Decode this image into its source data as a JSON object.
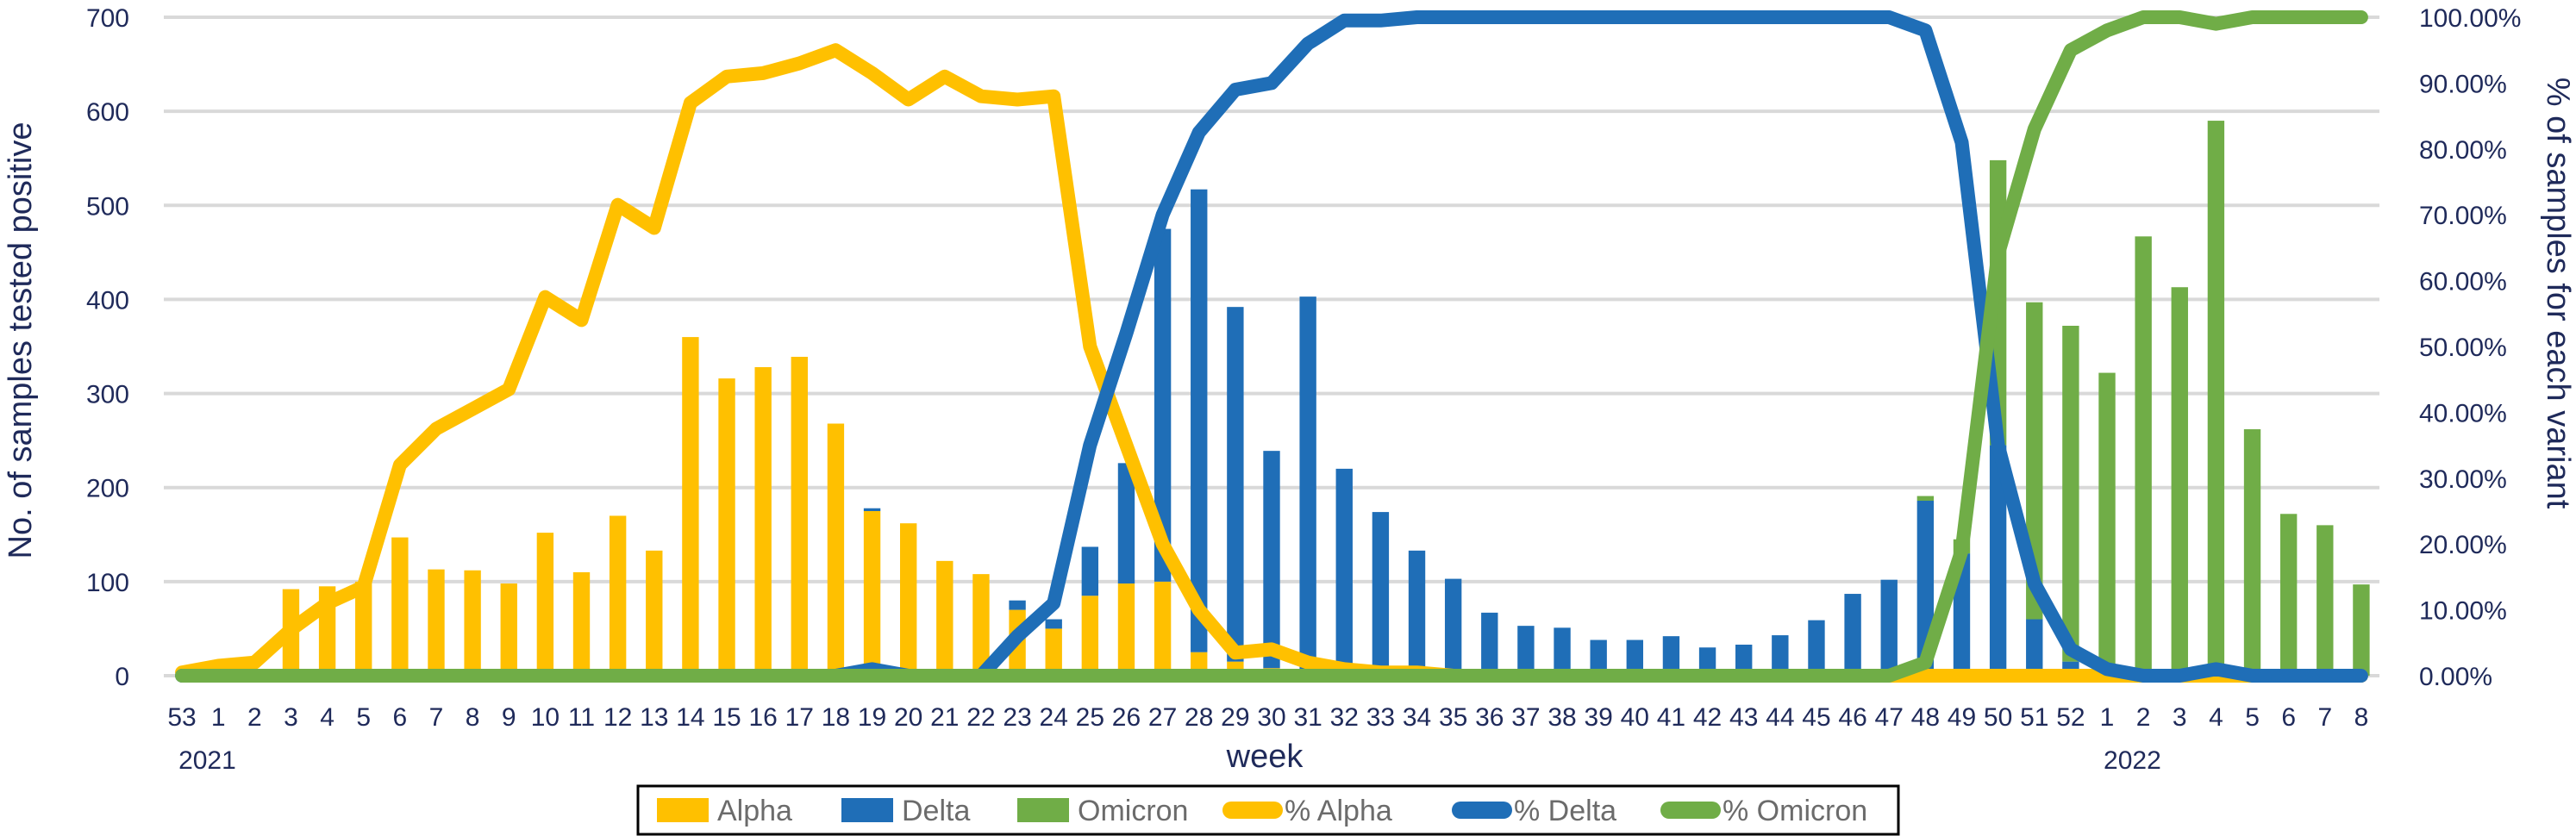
{
  "chart_data": {
    "type": "bar",
    "categories": [
      "53",
      "1",
      "2",
      "3",
      "4",
      "5",
      "6",
      "7",
      "8",
      "9",
      "10",
      "11",
      "12",
      "13",
      "14",
      "15",
      "16",
      "17",
      "18",
      "19",
      "20",
      "21",
      "22",
      "23",
      "24",
      "25",
      "26",
      "27",
      "28",
      "29",
      "30",
      "31",
      "32",
      "33",
      "34",
      "35",
      "36",
      "37",
      "38",
      "39",
      "40",
      "41",
      "42",
      "43",
      "44",
      "45",
      "46",
      "47",
      "48",
      "49",
      "50",
      "51",
      "52",
      "1",
      "2",
      "3",
      "4",
      "5",
      "6",
      "7",
      "8"
    ],
    "year_labels": [
      {
        "text": "2021",
        "at_index": 0
      },
      {
        "text": "2022",
        "at_index": 53
      }
    ],
    "xlabel": "week",
    "ylabel": "No. of samples tested positive",
    "y2label": "% of samples for each variant",
    "ylim": [
      0,
      700
    ],
    "yticks": [
      "0",
      "100",
      "200",
      "300",
      "400",
      "500",
      "600",
      "700"
    ],
    "y2lim": [
      0,
      100
    ],
    "y2ticks": [
      "0.00%",
      "10.00%",
      "20.00%",
      "30.00%",
      "40.00%",
      "50.00%",
      "60.00%",
      "70.00%",
      "80.00%",
      "90.00%",
      "100.00%"
    ],
    "grid": true,
    "legend_position": "bottom",
    "bar_series": [
      {
        "name": "Alpha",
        "color": "#FFC000",
        "values": [
          0,
          0,
          0,
          92,
          95,
          100,
          147,
          113,
          112,
          98,
          152,
          110,
          170,
          133,
          360,
          316,
          328,
          339,
          268,
          175,
          162,
          122,
          108,
          70,
          50,
          85,
          98,
          100,
          25,
          15,
          8,
          3,
          2,
          1,
          1,
          0,
          0,
          0,
          0,
          0,
          0,
          0,
          0,
          0,
          0,
          0,
          0,
          0,
          0,
          0,
          0,
          0,
          0,
          0,
          0,
          0,
          0,
          0,
          0,
          0,
          0
        ]
      },
      {
        "name": "Delta",
        "color": "#1F6EB7",
        "values": [
          0,
          0,
          0,
          0,
          0,
          0,
          0,
          0,
          0,
          0,
          0,
          0,
          0,
          0,
          0,
          0,
          0,
          0,
          0,
          3,
          0,
          0,
          0,
          10,
          10,
          52,
          128,
          375,
          492,
          377,
          231,
          400,
          218,
          173,
          132,
          103,
          67,
          53,
          51,
          38,
          38,
          42,
          30,
          33,
          43,
          59,
          87,
          102,
          186,
          130,
          245,
          60,
          15,
          0,
          0,
          0,
          0,
          0,
          0,
          0,
          0
        ]
      },
      {
        "name": "Omicron",
        "color": "#70AD47",
        "values": [
          0,
          0,
          0,
          0,
          0,
          0,
          0,
          0,
          0,
          0,
          0,
          0,
          0,
          0,
          0,
          0,
          0,
          0,
          0,
          0,
          0,
          0,
          0,
          0,
          0,
          0,
          0,
          0,
          0,
          0,
          0,
          0,
          0,
          0,
          0,
          0,
          0,
          0,
          0,
          0,
          0,
          0,
          0,
          0,
          0,
          0,
          0,
          0,
          5,
          15,
          303,
          337,
          357,
          322,
          467,
          413,
          590,
          262,
          172,
          160,
          97
        ]
      }
    ],
    "line_series": [
      {
        "name": "% Alpha",
        "color": "#FFC000",
        "values": [
          0.5,
          1.5,
          2,
          7,
          11,
          13.5,
          32,
          37.5,
          40.5,
          43.5,
          57.5,
          54,
          71.5,
          68,
          87,
          91,
          91.5,
          93,
          95,
          91.5,
          87.5,
          91,
          88,
          87.5,
          88,
          50,
          35,
          20,
          10,
          3.5,
          4,
          2,
          1,
          0.5,
          0.5,
          0,
          0,
          0,
          0,
          0,
          0,
          0,
          0,
          0,
          0,
          0,
          0,
          0,
          0,
          0,
          0,
          0,
          0,
          0,
          0,
          0,
          0,
          0,
          0,
          0,
          0
        ]
      },
      {
        "name": "% Delta",
        "color": "#1F6EB7",
        "values": [
          0,
          0,
          0,
          0,
          0,
          0,
          0,
          0,
          0,
          0,
          0,
          0,
          0,
          0,
          0,
          0,
          0,
          0,
          0,
          1,
          0,
          0,
          0,
          6,
          11,
          35,
          52,
          70,
          82.5,
          89,
          90,
          96,
          99.5,
          99.5,
          100,
          100,
          100,
          100,
          100,
          100,
          100,
          100,
          100,
          100,
          100,
          100,
          100,
          100,
          98,
          81,
          35,
          14,
          4,
          1,
          0,
          0,
          1,
          0,
          0,
          0,
          0
        ]
      },
      {
        "name": "% Omicron",
        "color": "#70AD47",
        "values": [
          0,
          0,
          0,
          0,
          0,
          0,
          0,
          0,
          0,
          0,
          0,
          0,
          0,
          0,
          0,
          0,
          0,
          0,
          0,
          0,
          0,
          0,
          0,
          0,
          0,
          0,
          0,
          0,
          0,
          0,
          0,
          0,
          0,
          0,
          0,
          0,
          0,
          0,
          0,
          0,
          0,
          0,
          0,
          0,
          0,
          0,
          0,
          0,
          2,
          19,
          64,
          83,
          95,
          98,
          100,
          100,
          99,
          100,
          100,
          100,
          100
        ]
      }
    ]
  }
}
